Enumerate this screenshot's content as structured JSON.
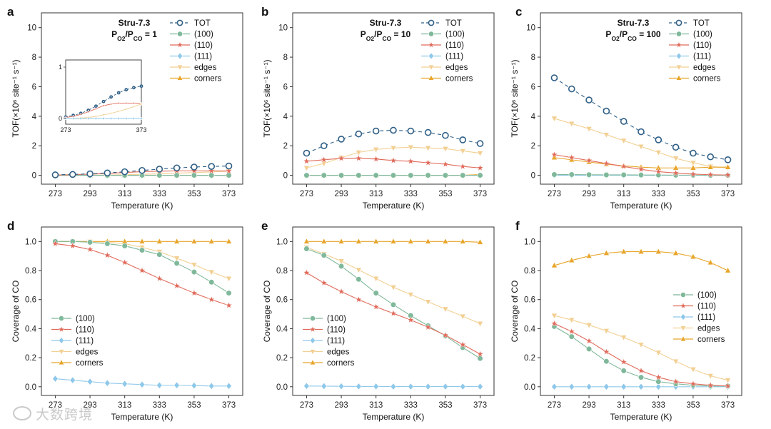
{
  "figure": {
    "watermark": "大数跨境",
    "colors": {
      "TOT": "#2f5f86",
      "100": "#7fb89a",
      "110": "#e06a5a",
      "111": "#8ec8ea",
      "edges": "#f2cf92",
      "corners": "#e8a52a"
    }
  },
  "chart_data": [
    {
      "panel": "a",
      "type": "line",
      "title": "Stru-7.3",
      "subtitle": "PO2/PCO = 1",
      "xlabel": "Temperature (K)",
      "ylabel": "TOF(×10⁶ site⁻¹ s⁻¹)",
      "xlim": [
        265,
        381
      ],
      "ylim": [
        -0.6,
        11
      ],
      "xticks": [
        273,
        293,
        313,
        333,
        353,
        373
      ],
      "yticks": [
        0,
        2,
        4,
        6,
        8,
        10
      ],
      "legend_position": "top-right",
      "x": [
        273,
        283,
        293,
        303,
        313,
        323,
        333,
        343,
        353,
        363,
        373
      ],
      "series": [
        {
          "name": "TOT",
          "key": "TOT",
          "values": [
            0.03,
            0.06,
            0.1,
            0.16,
            0.24,
            0.33,
            0.42,
            0.5,
            0.56,
            0.6,
            0.63
          ]
        },
        {
          "name": "(100)",
          "key": "100",
          "values": [
            0.0,
            0.0,
            0.0,
            0.0,
            0.0,
            0.0,
            0.0,
            0.0,
            0.0,
            0.0,
            0.0
          ]
        },
        {
          "name": "(110)",
          "key": "110",
          "values": [
            0.02,
            0.04,
            0.08,
            0.13,
            0.19,
            0.25,
            0.28,
            0.3,
            0.3,
            0.3,
            0.29
          ]
        },
        {
          "name": "(111)",
          "key": "111",
          "values": [
            0.0,
            0.0,
            0.0,
            0.0,
            0.0,
            0.0,
            0.0,
            0.0,
            0.0,
            0.0,
            0.0
          ]
        },
        {
          "name": "edges",
          "key": "edges",
          "values": [
            0.0,
            0.0,
            0.01,
            0.02,
            0.04,
            0.07,
            0.1,
            0.14,
            0.18,
            0.23,
            0.28
          ]
        },
        {
          "name": "corners",
          "key": "corners",
          "values": [
            0.0,
            0.0,
            0.0,
            0.0,
            0.0,
            0.0,
            0.0,
            0.0,
            0.0,
            0.0,
            0.0
          ]
        }
      ],
      "inset": {
        "xlim": [
          273,
          373
        ],
        "ylim": [
          0,
          1
        ],
        "xticks": [
          273,
          373
        ],
        "yticks": [
          0,
          1
        ],
        "x": [
          273,
          283,
          293,
          303,
          313,
          323,
          333,
          343,
          353,
          363,
          373
        ],
        "series": [
          {
            "key": "TOT",
            "values": [
              0.03,
              0.06,
              0.1,
              0.16,
              0.24,
              0.33,
              0.42,
              0.5,
              0.56,
              0.6,
              0.63
            ]
          },
          {
            "key": "110",
            "values": [
              0.02,
              0.04,
              0.08,
              0.13,
              0.19,
              0.25,
              0.28,
              0.3,
              0.3,
              0.3,
              0.29
            ]
          },
          {
            "key": "edges",
            "values": [
              0.0,
              0.0,
              0.01,
              0.02,
              0.04,
              0.07,
              0.1,
              0.14,
              0.18,
              0.23,
              0.28
            ]
          },
          {
            "key": "111",
            "values": [
              0.0,
              0.0,
              0.0,
              0.0,
              0.0,
              0.0,
              0.0,
              0.0,
              0.0,
              0.0,
              0.0
            ]
          }
        ]
      }
    },
    {
      "panel": "b",
      "type": "line",
      "title": "Stru-7.3",
      "subtitle": "PO2/PCO = 10",
      "xlabel": "Temperature (K)",
      "ylabel": "TOF(×10⁶ site⁻¹ s⁻¹)",
      "xlim": [
        265,
        381
      ],
      "ylim": [
        -0.6,
        11
      ],
      "xticks": [
        273,
        293,
        313,
        333,
        353,
        373
      ],
      "yticks": [
        0,
        2,
        4,
        6,
        8,
        10
      ],
      "legend_position": "top-right",
      "x": [
        273,
        283,
        293,
        303,
        313,
        323,
        333,
        343,
        353,
        363,
        373
      ],
      "series": [
        {
          "name": "TOT",
          "key": "TOT",
          "values": [
            1.5,
            2.0,
            2.45,
            2.8,
            3.0,
            3.05,
            3.0,
            2.9,
            2.7,
            2.4,
            2.15
          ]
        },
        {
          "name": "(100)",
          "key": "100",
          "values": [
            0.0,
            0.0,
            0.0,
            0.0,
            0.0,
            0.0,
            0.0,
            0.0,
            0.0,
            0.0,
            0.0
          ]
        },
        {
          "name": "(110)",
          "key": "110",
          "values": [
            0.95,
            1.05,
            1.15,
            1.15,
            1.1,
            1.0,
            0.95,
            0.85,
            0.75,
            0.6,
            0.5
          ]
        },
        {
          "name": "(111)",
          "key": "111",
          "values": [
            0.0,
            0.0,
            0.0,
            0.0,
            0.0,
            0.0,
            0.0,
            0.0,
            0.0,
            0.0,
            0.0
          ]
        },
        {
          "name": "edges",
          "key": "edges",
          "values": [
            0.5,
            0.8,
            1.2,
            1.55,
            1.75,
            1.85,
            1.9,
            1.85,
            1.8,
            1.65,
            1.5
          ]
        },
        {
          "name": "corners",
          "key": "corners",
          "values": [
            0.0,
            0.0,
            0.0,
            0.0,
            0.0,
            0.0,
            0.0,
            0.0,
            0.0,
            0.0,
            0.05
          ]
        }
      ]
    },
    {
      "panel": "c",
      "type": "line",
      "title": "Stru-7.3",
      "subtitle": "PO2/PCO = 100",
      "xlabel": "Temperature (K)",
      "ylabel": "TOF(×10⁶ site⁻¹ s⁻¹)",
      "xlim": [
        265,
        381
      ],
      "ylim": [
        -0.6,
        11
      ],
      "xticks": [
        273,
        293,
        313,
        333,
        353,
        373
      ],
      "yticks": [
        0,
        2,
        4,
        6,
        8,
        10
      ],
      "legend_position": "top-right",
      "x": [
        273,
        283,
        293,
        303,
        313,
        323,
        333,
        343,
        353,
        363,
        373
      ],
      "series": [
        {
          "name": "TOT",
          "key": "TOT",
          "values": [
            6.6,
            5.85,
            5.1,
            4.35,
            3.65,
            2.95,
            2.4,
            1.9,
            1.5,
            1.25,
            1.05
          ]
        },
        {
          "name": "(100)",
          "key": "100",
          "values": [
            0.05,
            0.05,
            0.04,
            0.03,
            0.03,
            0.02,
            0.02,
            0.01,
            0.01,
            0.0,
            0.0
          ]
        },
        {
          "name": "(110)",
          "key": "110",
          "values": [
            1.4,
            1.2,
            1.0,
            0.8,
            0.6,
            0.4,
            0.25,
            0.15,
            0.08,
            0.04,
            0.02
          ]
        },
        {
          "name": "(111)",
          "key": "111",
          "values": [
            0.0,
            0.0,
            0.0,
            0.0,
            0.0,
            0.0,
            0.0,
            0.0,
            0.0,
            0.0,
            0.0
          ]
        },
        {
          "name": "edges",
          "key": "edges",
          "values": [
            3.85,
            3.5,
            3.15,
            2.75,
            2.35,
            1.95,
            1.55,
            1.15,
            0.85,
            0.6,
            0.5
          ]
        },
        {
          "name": "corners",
          "key": "corners",
          "values": [
            1.2,
            1.05,
            0.9,
            0.75,
            0.65,
            0.55,
            0.5,
            0.5,
            0.5,
            0.55,
            0.55
          ]
        }
      ]
    },
    {
      "panel": "d",
      "type": "line",
      "xlabel": "Temperature (K)",
      "ylabel": "Coverage of CO",
      "xlim": [
        265,
        381
      ],
      "ylim": [
        -0.06,
        1.1
      ],
      "xticks": [
        273,
        293,
        313,
        333,
        353,
        373
      ],
      "yticks": [
        0.0,
        0.2,
        0.4,
        0.6,
        0.8,
        1.0
      ],
      "legend_position": "bottom-left",
      "x": [
        273,
        283,
        293,
        303,
        313,
        323,
        333,
        343,
        353,
        363,
        373
      ],
      "series": [
        {
          "name": "(100)",
          "key": "100",
          "values": [
            1.0,
            1.0,
            0.995,
            0.985,
            0.97,
            0.94,
            0.91,
            0.85,
            0.79,
            0.72,
            0.645
          ]
        },
        {
          "name": "(110)",
          "key": "110",
          "values": [
            0.985,
            0.97,
            0.945,
            0.905,
            0.855,
            0.8,
            0.745,
            0.695,
            0.645,
            0.6,
            0.56
          ]
        },
        {
          "name": "(111)",
          "key": "111",
          "values": [
            0.055,
            0.045,
            0.035,
            0.025,
            0.02,
            0.015,
            0.01,
            0.01,
            0.008,
            0.005,
            0.005
          ]
        },
        {
          "name": "edges",
          "key": "edges",
          "values": [
            1.0,
            1.0,
            1.0,
            0.995,
            0.985,
            0.96,
            0.93,
            0.885,
            0.84,
            0.79,
            0.745
          ]
        },
        {
          "name": "corners",
          "key": "corners",
          "values": [
            1.0,
            1.0,
            1.0,
            1.0,
            1.0,
            1.0,
            1.0,
            1.0,
            1.0,
            1.0,
            1.0
          ]
        }
      ]
    },
    {
      "panel": "e",
      "type": "line",
      "xlabel": "Temperature (K)",
      "ylabel": "Coverage of CO",
      "xlim": [
        265,
        381
      ],
      "ylim": [
        -0.06,
        1.1
      ],
      "xticks": [
        273,
        293,
        313,
        333,
        353,
        373
      ],
      "yticks": [
        0.0,
        0.2,
        0.4,
        0.6,
        0.8,
        1.0
      ],
      "legend_position": "bottom-left",
      "x": [
        273,
        283,
        293,
        303,
        313,
        323,
        333,
        343,
        353,
        363,
        373
      ],
      "series": [
        {
          "name": "(100)",
          "key": "100",
          "values": [
            0.95,
            0.905,
            0.83,
            0.74,
            0.645,
            0.565,
            0.49,
            0.42,
            0.35,
            0.27,
            0.195
          ]
        },
        {
          "name": "(110)",
          "key": "110",
          "values": [
            0.785,
            0.715,
            0.655,
            0.6,
            0.55,
            0.505,
            0.46,
            0.41,
            0.355,
            0.29,
            0.225
          ]
        },
        {
          "name": "(111)",
          "key": "111",
          "values": [
            0.005,
            0.004,
            0.003,
            0.002,
            0.002,
            0.001,
            0.001,
            0.001,
            0.001,
            0.001,
            0.001
          ]
        },
        {
          "name": "edges",
          "key": "edges",
          "values": [
            0.96,
            0.915,
            0.865,
            0.805,
            0.745,
            0.685,
            0.635,
            0.585,
            0.535,
            0.485,
            0.435
          ]
        },
        {
          "name": "corners",
          "key": "corners",
          "values": [
            1.0,
            1.0,
            1.0,
            1.0,
            1.0,
            1.0,
            1.0,
            1.0,
            1.0,
            1.0,
            0.995
          ]
        }
      ]
    },
    {
      "panel": "f",
      "type": "line",
      "xlabel": "Temperature (K)",
      "ylabel": "Coverage of CO",
      "xlim": [
        265,
        381
      ],
      "ylim": [
        -0.06,
        1.1
      ],
      "xticks": [
        273,
        293,
        313,
        333,
        353,
        373
      ],
      "yticks": [
        0.0,
        0.2,
        0.4,
        0.6,
        0.8,
        1.0
      ],
      "legend_position": "center-right",
      "x": [
        273,
        283,
        293,
        303,
        313,
        323,
        333,
        343,
        353,
        363,
        373
      ],
      "series": [
        {
          "name": "(100)",
          "key": "100",
          "values": [
            0.415,
            0.345,
            0.26,
            0.175,
            0.11,
            0.065,
            0.035,
            0.02,
            0.01,
            0.005,
            0.005
          ]
        },
        {
          "name": "(110)",
          "key": "110",
          "values": [
            0.435,
            0.38,
            0.315,
            0.24,
            0.17,
            0.11,
            0.065,
            0.035,
            0.02,
            0.01,
            0.005
          ]
        },
        {
          "name": "(111)",
          "key": "111",
          "values": [
            0.0,
            0.0,
            0.0,
            0.0,
            0.0,
            0.0,
            0.0,
            0.0,
            0.0,
            0.0,
            0.0
          ]
        },
        {
          "name": "edges",
          "key": "edges",
          "values": [
            0.49,
            0.46,
            0.425,
            0.385,
            0.34,
            0.29,
            0.235,
            0.175,
            0.12,
            0.075,
            0.045
          ]
        },
        {
          "name": "corners",
          "key": "corners",
          "values": [
            0.835,
            0.87,
            0.9,
            0.92,
            0.93,
            0.93,
            0.93,
            0.92,
            0.895,
            0.855,
            0.8
          ]
        }
      ]
    }
  ]
}
